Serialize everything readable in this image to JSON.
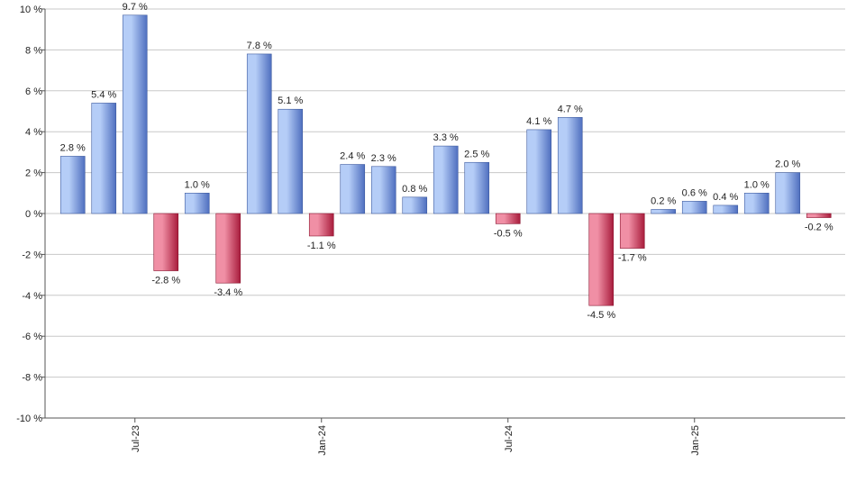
{
  "chart_data": {
    "type": "bar",
    "title": "",
    "xlabel": "",
    "ylabel": "",
    "ylim": [
      -10,
      10
    ],
    "yticks": [
      -10,
      -8,
      -6,
      -4,
      -2,
      0,
      2,
      4,
      6,
      8,
      10
    ],
    "ytick_suffix": " %",
    "grid": true,
    "xtick_labels": [
      {
        "label": "Jul-23",
        "index": 2
      },
      {
        "label": "Jan-24",
        "index": 8
      },
      {
        "label": "Jul-24",
        "index": 14
      },
      {
        "label": "Jan-25",
        "index": 20
      }
    ],
    "values": [
      2.8,
      5.4,
      9.7,
      -2.8,
      1.0,
      -3.4,
      7.8,
      5.1,
      -1.1,
      2.4,
      2.3,
      0.8,
      3.3,
      2.5,
      -0.5,
      4.1,
      4.7,
      -4.5,
      -1.7,
      0.2,
      0.6,
      0.4,
      1.0,
      2.0,
      -0.2
    ],
    "labels": [
      "2.8 %",
      "5.4 %",
      "9.7 %",
      "-2.8 %",
      "1.0 %",
      "-3.4 %",
      "7.8 %",
      "5.1 %",
      "-1.1 %",
      "2.4 %",
      "2.3 %",
      "0.8 %",
      "3.3 %",
      "2.5 %",
      "-0.5 %",
      "4.1 %",
      "4.7 %",
      "-4.5 %",
      "-1.7 %",
      "0.2 %",
      "0.6 %",
      "0.4 %",
      "1.0 %",
      "2.0 %",
      "-0.2 %"
    ],
    "colors": {
      "positive_light": "#b5cdf7",
      "positive_dark": "#4f6fbf",
      "negative_light": "#f08fa5",
      "negative_dark": "#a81c3c",
      "grid": "#c8c8c8",
      "axis": "#555555"
    }
  }
}
